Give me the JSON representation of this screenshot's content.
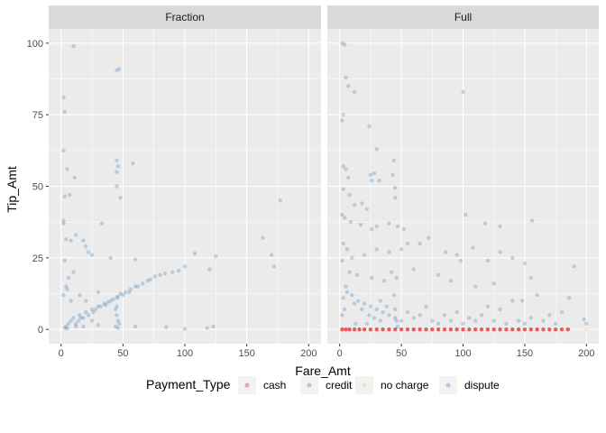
{
  "chart_data": {
    "type": "scatter",
    "facet_by": "rate",
    "facets": [
      {
        "label": "Fraction"
      },
      {
        "label": "Full"
      }
    ],
    "xlabel": "Fare_Amt",
    "ylabel": "Tip_Amt",
    "xlim": [
      0,
      200
    ],
    "ylim": [
      0,
      100
    ],
    "x_ticks": [
      0,
      50,
      100,
      150,
      200
    ],
    "y_ticks": [
      0,
      25,
      50,
      75,
      100
    ],
    "grid": true,
    "legend": {
      "title": "Payment_Type",
      "position": "bottom",
      "entries": [
        {
          "label": "cash",
          "color": "#E41A1C"
        },
        {
          "label": "credit",
          "color": "#4682B4"
        },
        {
          "label": "no charge",
          "color": "#F5C06B"
        },
        {
          "label": "dispute",
          "color": "#B04FC9"
        }
      ]
    },
    "series": [
      {
        "name": "credit",
        "facet": "Fraction",
        "color": "#4682B4",
        "points": [
          [
            10,
            99
          ],
          [
            2,
            81
          ],
          [
            3,
            76
          ],
          [
            2,
            62.5
          ],
          [
            45,
            90.5
          ],
          [
            47,
            91
          ],
          [
            5,
            56
          ],
          [
            11,
            53
          ],
          [
            45,
            59
          ],
          [
            46,
            57
          ],
          [
            58,
            58
          ],
          [
            45,
            55
          ],
          [
            45,
            50
          ],
          [
            7,
            47
          ],
          [
            3,
            46.5
          ],
          [
            48,
            46
          ],
          [
            177,
            45
          ],
          [
            2,
            37
          ],
          [
            2,
            38
          ],
          [
            33,
            37
          ],
          [
            12,
            33
          ],
          [
            4,
            31.5
          ],
          [
            8,
            31
          ],
          [
            18,
            31
          ],
          [
            20,
            29
          ],
          [
            22,
            27
          ],
          [
            25,
            26
          ],
          [
            40,
            25
          ],
          [
            60,
            24.5
          ],
          [
            108,
            26.5
          ],
          [
            125,
            25.5
          ],
          [
            163,
            32
          ],
          [
            170,
            26
          ],
          [
            172,
            22
          ],
          [
            120,
            21
          ],
          [
            100,
            22
          ],
          [
            90,
            20
          ],
          [
            80,
            19
          ],
          [
            70,
            17
          ],
          [
            60,
            15
          ],
          [
            55,
            13
          ],
          [
            50,
            12
          ],
          [
            45,
            11
          ],
          [
            40,
            10
          ],
          [
            35,
            9
          ],
          [
            30,
            8
          ],
          [
            25,
            7
          ],
          [
            20,
            6
          ],
          [
            15,
            5
          ],
          [
            10,
            4
          ],
          [
            8,
            3
          ],
          [
            6,
            2
          ],
          [
            4,
            1
          ],
          [
            3,
            0.5
          ],
          [
            5,
            0.3
          ],
          [
            12,
            2
          ],
          [
            14,
            3
          ],
          [
            16,
            4
          ],
          [
            18,
            4
          ],
          [
            22,
            5
          ],
          [
            26,
            6
          ],
          [
            28,
            7
          ],
          [
            32,
            8
          ],
          [
            36,
            8.5
          ],
          [
            38,
            9.5
          ],
          [
            42,
            10.5
          ],
          [
            46,
            11.5
          ],
          [
            48,
            12.5
          ],
          [
            52,
            13
          ],
          [
            56,
            14
          ],
          [
            62,
            15
          ],
          [
            66,
            16
          ],
          [
            72,
            17.5
          ],
          [
            76,
            18.5
          ],
          [
            84,
            19.5
          ],
          [
            95,
            20.5
          ],
          [
            30,
            13
          ],
          [
            20,
            10
          ],
          [
            15,
            12
          ],
          [
            8,
            10
          ],
          [
            5,
            14
          ],
          [
            6,
            18
          ],
          [
            10,
            20
          ],
          [
            3,
            24
          ],
          [
            4,
            15
          ],
          [
            2,
            12
          ],
          [
            44,
            1
          ],
          [
            46,
            0.5
          ],
          [
            47,
            2
          ],
          [
            46,
            3
          ],
          [
            45,
            5
          ],
          [
            44,
            7
          ],
          [
            45,
            8
          ],
          [
            123,
            1
          ],
          [
            118,
            0.5
          ],
          [
            85,
            0.8
          ],
          [
            100,
            0.2
          ],
          [
            60,
            1
          ],
          [
            30,
            1.5
          ],
          [
            25,
            3
          ],
          [
            18,
            1
          ],
          [
            12,
            1
          ]
        ]
      },
      {
        "name": "credit",
        "facet": "Full",
        "color": "#4682B4",
        "points": [
          [
            2,
            100
          ],
          [
            4,
            99.5
          ],
          [
            3,
            75
          ],
          [
            2,
            73
          ],
          [
            5,
            88
          ],
          [
            7,
            85
          ],
          [
            100,
            83
          ],
          [
            12,
            83
          ],
          [
            24,
            71
          ],
          [
            30,
            63
          ],
          [
            44,
            59
          ],
          [
            3,
            57
          ],
          [
            5,
            56
          ],
          [
            25,
            54
          ],
          [
            28,
            54.5
          ],
          [
            43,
            54
          ],
          [
            26,
            52
          ],
          [
            7,
            53
          ],
          [
            32,
            52
          ],
          [
            45,
            49.5
          ],
          [
            3,
            49
          ],
          [
            8,
            47
          ],
          [
            12,
            43.5
          ],
          [
            45,
            46
          ],
          [
            18,
            44
          ],
          [
            22,
            42
          ],
          [
            2,
            40
          ],
          [
            4,
            39
          ],
          [
            9,
            37.5
          ],
          [
            17,
            36.5
          ],
          [
            26,
            35
          ],
          [
            30,
            36
          ],
          [
            40,
            37
          ],
          [
            47,
            36
          ],
          [
            52,
            35
          ],
          [
            130,
            36
          ],
          [
            156,
            38
          ],
          [
            102,
            40
          ],
          [
            118,
            37
          ],
          [
            130,
            27
          ],
          [
            150,
            23
          ],
          [
            140,
            25
          ],
          [
            120,
            24
          ],
          [
            98,
            24
          ],
          [
            95,
            26
          ],
          [
            108,
            28.5
          ],
          [
            86,
            27
          ],
          [
            72,
            32
          ],
          [
            65,
            30
          ],
          [
            55,
            30
          ],
          [
            50,
            28
          ],
          [
            40,
            27
          ],
          [
            30,
            28
          ],
          [
            20,
            26
          ],
          [
            10,
            25
          ],
          [
            6,
            28
          ],
          [
            3,
            30
          ],
          [
            2,
            24
          ],
          [
            8,
            20
          ],
          [
            14,
            19
          ],
          [
            26,
            18
          ],
          [
            36,
            17
          ],
          [
            42,
            20
          ],
          [
            60,
            21
          ],
          [
            80,
            19
          ],
          [
            90,
            17
          ],
          [
            110,
            15
          ],
          [
            125,
            16
          ],
          [
            148,
            10
          ],
          [
            155,
            18
          ],
          [
            190,
            22
          ],
          [
            200,
            2
          ],
          [
            198,
            3.5
          ],
          [
            186,
            11
          ],
          [
            5,
            15
          ],
          [
            10,
            12
          ],
          [
            15,
            10
          ],
          [
            20,
            9
          ],
          [
            25,
            8
          ],
          [
            30,
            7
          ],
          [
            35,
            6
          ],
          [
            40,
            5
          ],
          [
            45,
            4
          ],
          [
            50,
            3
          ],
          [
            55,
            6
          ],
          [
            60,
            4
          ],
          [
            65,
            5
          ],
          [
            70,
            8
          ],
          [
            75,
            3
          ],
          [
            80,
            2
          ],
          [
            85,
            5
          ],
          [
            90,
            3
          ],
          [
            95,
            6
          ],
          [
            100,
            2
          ],
          [
            105,
            4
          ],
          [
            110,
            3
          ],
          [
            115,
            5
          ],
          [
            120,
            8
          ],
          [
            125,
            3
          ],
          [
            130,
            7
          ],
          [
            135,
            2
          ],
          [
            140,
            10
          ],
          [
            145,
            3
          ],
          [
            150,
            2
          ],
          [
            155,
            4
          ],
          [
            160,
            12
          ],
          [
            165,
            3
          ],
          [
            170,
            5
          ],
          [
            175,
            2
          ],
          [
            180,
            6
          ],
          [
            3,
            11
          ],
          [
            6,
            13
          ],
          [
            12,
            9
          ],
          [
            18,
            7
          ],
          [
            24,
            5
          ],
          [
            28,
            4
          ],
          [
            33,
            10
          ],
          [
            38,
            8
          ],
          [
            44,
            12
          ],
          [
            46,
            18
          ],
          [
            46,
            3
          ],
          [
            45,
            7
          ],
          [
            47,
            1
          ],
          [
            13,
            2
          ],
          [
            22,
            2
          ],
          [
            33,
            3
          ],
          [
            2,
            5
          ],
          [
            4,
            7
          ]
        ]
      },
      {
        "name": "cash",
        "facet": "Full",
        "color": "#E41A1C",
        "points": [
          [
            2,
            0
          ],
          [
            5,
            0
          ],
          [
            8,
            0
          ],
          [
            12,
            0
          ],
          [
            16,
            0
          ],
          [
            20,
            0
          ],
          [
            25,
            0
          ],
          [
            30,
            0
          ],
          [
            35,
            0
          ],
          [
            40,
            0
          ],
          [
            45,
            0
          ],
          [
            50,
            0
          ],
          [
            55,
            0
          ],
          [
            60,
            0
          ],
          [
            65,
            0
          ],
          [
            70,
            0
          ],
          [
            75,
            0
          ],
          [
            80,
            0
          ],
          [
            85,
            0
          ],
          [
            90,
            0
          ],
          [
            95,
            0
          ],
          [
            100,
            0
          ],
          [
            105,
            0
          ],
          [
            110,
            0
          ],
          [
            115,
            0
          ],
          [
            120,
            0
          ],
          [
            125,
            0
          ],
          [
            130,
            0
          ],
          [
            135,
            0
          ],
          [
            140,
            0
          ],
          [
            145,
            0
          ],
          [
            150,
            0
          ],
          [
            155,
            0
          ],
          [
            160,
            0
          ],
          [
            165,
            0
          ],
          [
            170,
            0
          ],
          [
            175,
            0
          ],
          [
            180,
            0
          ],
          [
            185,
            0
          ]
        ]
      },
      {
        "name": "no charge",
        "facet": "Full",
        "color": "#F5C06B",
        "points": [
          [
            200,
            0
          ]
        ]
      }
    ]
  }
}
